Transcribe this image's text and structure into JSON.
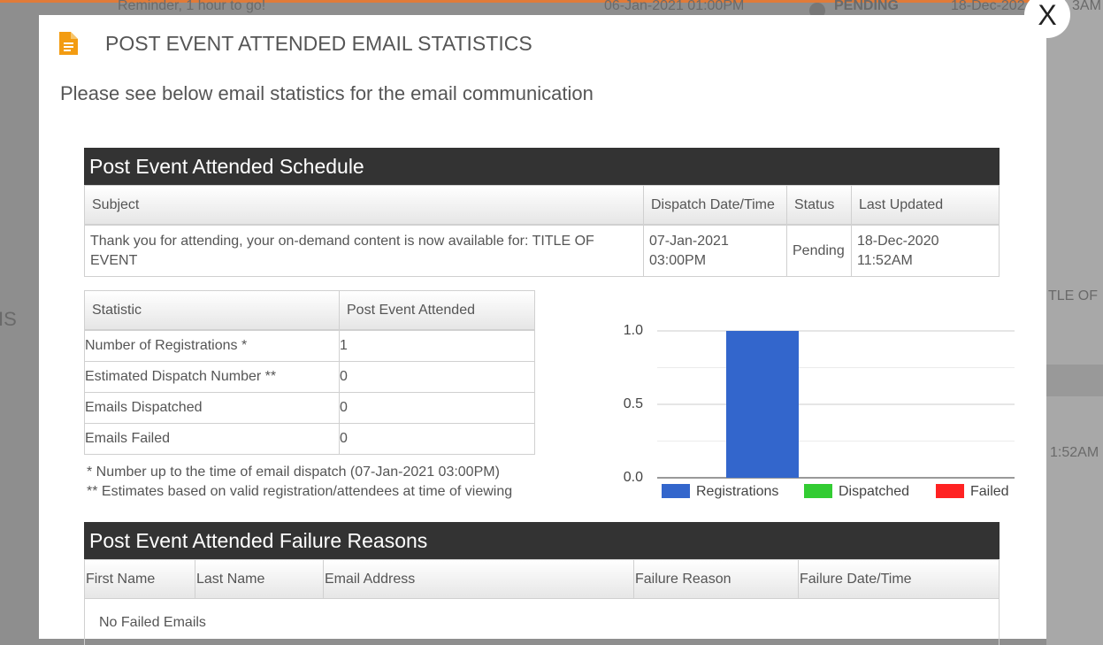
{
  "background": {
    "texts": [
      "Reminder, 1 hour to go!",
      "06-Jan-2021 01:00PM",
      "PENDING",
      "18-Dec-202",
      "3AM",
      "IS",
      "TLE OF",
      "1:52AM"
    ]
  },
  "modal": {
    "title": "POST EVENT ATTENDED EMAIL STATISTICS",
    "subtitle": "Please see below email statistics for the email communication",
    "close": "X"
  },
  "schedule_table": {
    "title": "Post Event Attended Schedule",
    "columns": [
      "Subject",
      "Dispatch Date/Time",
      "Status",
      "Last Updated"
    ],
    "rows": [
      [
        "Thank you for attending, your on-demand content is now available for: TITLE OF EVENT",
        "07-Jan-2021 03:00PM",
        "Pending",
        "18-Dec-2020 11:52AM"
      ]
    ]
  },
  "statistics_table": {
    "columns": [
      "Statistic",
      "Post Event Attended"
    ],
    "rows": [
      [
        "Number of Registrations *",
        1
      ],
      [
        "Estimated Dispatch Number **",
        0
      ],
      [
        "Emails Dispatched",
        0
      ],
      [
        "Emails Failed",
        0
      ]
    ]
  },
  "footnotes": [
    "* Number up to the time of email dispatch (07-Jan-2021 03:00PM)",
    "** Estimates based on valid registration/attendees at time of viewing"
  ],
  "chart_data": {
    "type": "bar",
    "categories": [
      null
    ],
    "series": [
      {
        "name": "Registrations",
        "color": "#3366cc",
        "values": [
          1
        ]
      },
      {
        "name": "Dispatched",
        "color": "#33cc33",
        "values": [
          0
        ]
      },
      {
        "name": "Failed",
        "color": "#ff2222",
        "values": [
          0
        ]
      }
    ],
    "ylim": [
      0,
      1
    ],
    "yticks": [
      {
        "value": 0,
        "label": "0.0"
      },
      {
        "value": 0.5,
        "label": "0.5"
      },
      {
        "value": 1,
        "label": "1.0"
      }
    ],
    "minor_yticks": [
      0.25,
      0.75
    ],
    "grid": true,
    "legend": "bottom"
  },
  "failure_table": {
    "title": "Post Event Attended Failure Reasons",
    "columns": [
      "First Name",
      "Last Name",
      "Email Address",
      "Failure Reason",
      "Failure Date/Time"
    ],
    "empty_message": "No Failed Emails"
  }
}
